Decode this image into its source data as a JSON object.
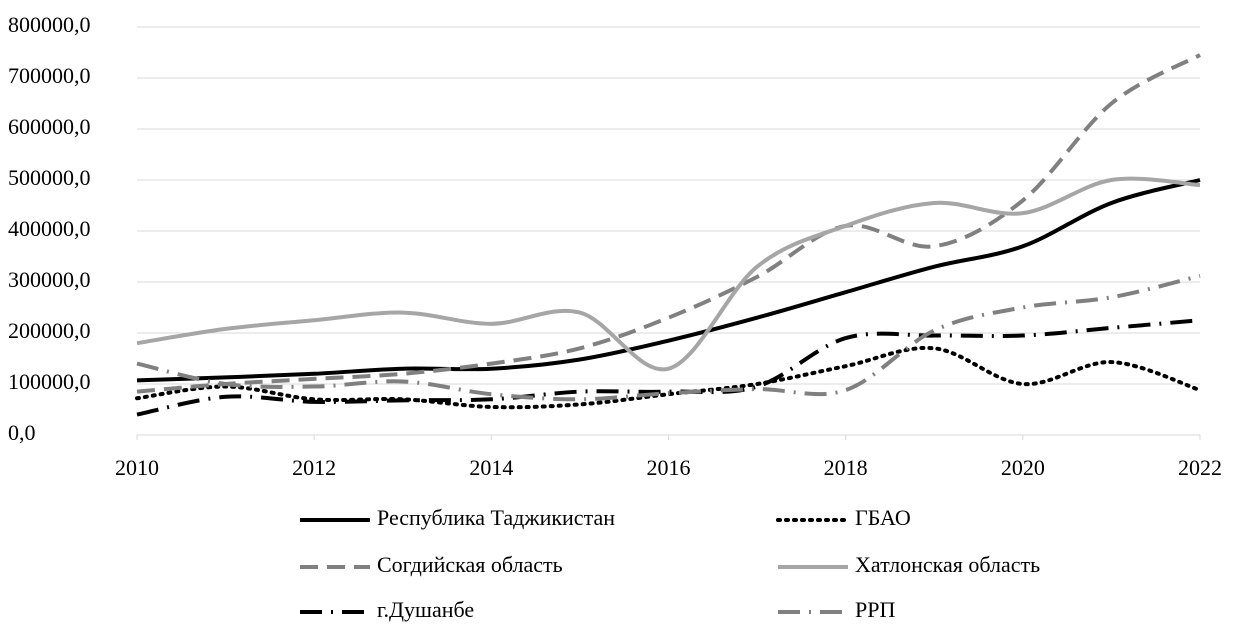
{
  "chart_data": {
    "type": "line",
    "x": [
      2010,
      2011,
      2012,
      2013,
      2014,
      2015,
      2016,
      2017,
      2018,
      2019,
      2020,
      2021,
      2022
    ],
    "xlim": [
      2010,
      2022
    ],
    "xticks": [
      2010,
      2012,
      2014,
      2016,
      2018,
      2020,
      2022
    ],
    "ylim": [
      0,
      800000
    ],
    "yticks": [
      {
        "value": 0,
        "label": "0,0"
      },
      {
        "value": 100000,
        "label": "100000,0"
      },
      {
        "value": 200000,
        "label": "200000,0"
      },
      {
        "value": 300000,
        "label": "300000,0"
      },
      {
        "value": 400000,
        "label": "400000,0"
      },
      {
        "value": 500000,
        "label": "500000,0"
      },
      {
        "value": 600000,
        "label": "600000,0"
      },
      {
        "value": 700000,
        "label": "700000,0"
      },
      {
        "value": 800000,
        "label": "800000,0"
      }
    ],
    "grid": true,
    "legend": "bottom",
    "series": [
      {
        "name": "Республика Таджикистан",
        "color": "#000000",
        "dash": "solid",
        "values": [
          107000,
          113000,
          120000,
          130000,
          130000,
          148000,
          185000,
          230000,
          280000,
          330000,
          370000,
          455000,
          500000
        ]
      },
      {
        "name": "ГБАО",
        "color": "#000000",
        "dash": "dot",
        "values": [
          72000,
          95000,
          70000,
          70000,
          55000,
          60000,
          80000,
          100000,
          135000,
          170000,
          100000,
          143000,
          88000
        ]
      },
      {
        "name": "Согдийская область",
        "color": "#808080",
        "dash": "dash",
        "values": [
          85000,
          100000,
          110000,
          120000,
          140000,
          170000,
          230000,
          310000,
          410000,
          370000,
          460000,
          650000,
          745000
        ]
      },
      {
        "name": "Хатлонская область",
        "color": "#a6a6a6",
        "dash": "solid",
        "values": [
          180000,
          208000,
          225000,
          240000,
          218000,
          240000,
          130000,
          330000,
          410000,
          455000,
          435000,
          500000,
          490000
        ]
      },
      {
        "name": "г.Душанбе",
        "color": "#000000",
        "dash": "dashdot",
        "values": [
          40000,
          75000,
          65000,
          68000,
          70000,
          85000,
          85000,
          95000,
          190000,
          195000,
          195000,
          210000,
          225000
        ]
      },
      {
        "name": "РРП",
        "color": "#808080",
        "dash": "dashdot",
        "values": [
          140000,
          100000,
          95000,
          105000,
          80000,
          70000,
          82000,
          90000,
          88000,
          205000,
          250000,
          270000,
          312000
        ]
      }
    ]
  }
}
